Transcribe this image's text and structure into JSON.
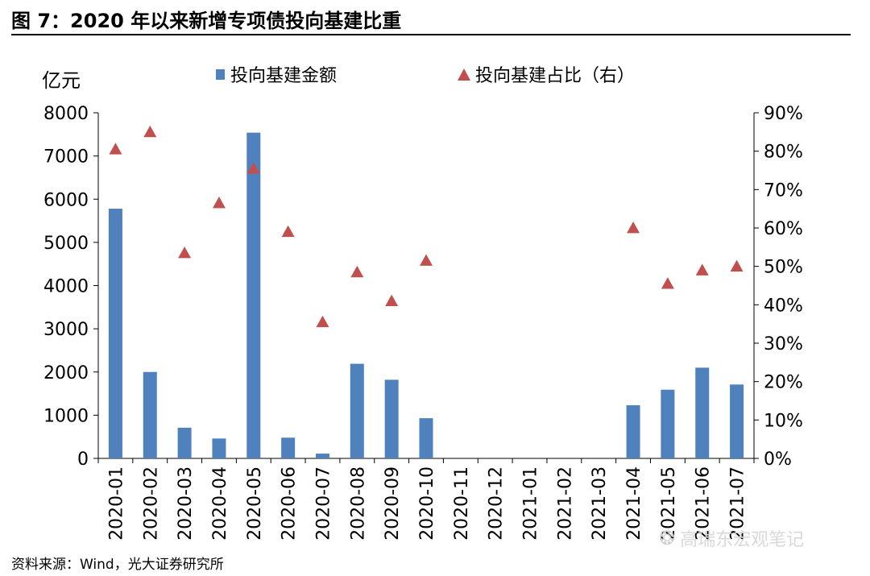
{
  "header": {
    "title": "图 7：2020 年以来新增专项债投向基建比重"
  },
  "footer": {
    "source": "资料来源：Wind，光大证券研究所"
  },
  "watermark": {
    "icon": "wechat-icon",
    "text": "高瑞东宏观笔记"
  },
  "chart_data": {
    "type": "bar",
    "title": "",
    "xlabel": "",
    "ylabel": "亿元",
    "categories": [
      "2020-01",
      "2020-02",
      "2020-03",
      "2020-04",
      "2020-05",
      "2020-06",
      "2020-07",
      "2020-08",
      "2020-09",
      "2020-10",
      "2020-11",
      "2020-12",
      "2021-01",
      "2021-02",
      "2021-03",
      "2021-04",
      "2021-05",
      "2021-06",
      "2021-07"
    ],
    "ylim": [
      0,
      8000
    ],
    "yticks": [
      "0",
      "1000",
      "2000",
      "3000",
      "4000",
      "5000",
      "6000",
      "7000",
      "8000"
    ],
    "y2lim": [
      0,
      90
    ],
    "y2ticks": [
      "0%",
      "10%",
      "20%",
      "30%",
      "40%",
      "50%",
      "60%",
      "70%",
      "80%",
      "90%"
    ],
    "legend_position": "top",
    "series": [
      {
        "name": "投向基建金额",
        "kind": "bar",
        "axis": "left",
        "color": "#4f81bd",
        "values": [
          5780,
          2000,
          710,
          460,
          7540,
          480,
          110,
          2190,
          1820,
          930,
          0,
          0,
          0,
          0,
          0,
          1230,
          1590,
          2100,
          1710
        ]
      },
      {
        "name": "投向基建占比（右）",
        "kind": "triangle",
        "axis": "right",
        "color": "#c0504d",
        "values": [
          80.5,
          85.0,
          53.5,
          66.5,
          75.5,
          59.0,
          35.5,
          48.5,
          41.0,
          51.5,
          null,
          null,
          null,
          null,
          null,
          60.0,
          45.5,
          49.0,
          50.0
        ]
      }
    ]
  }
}
